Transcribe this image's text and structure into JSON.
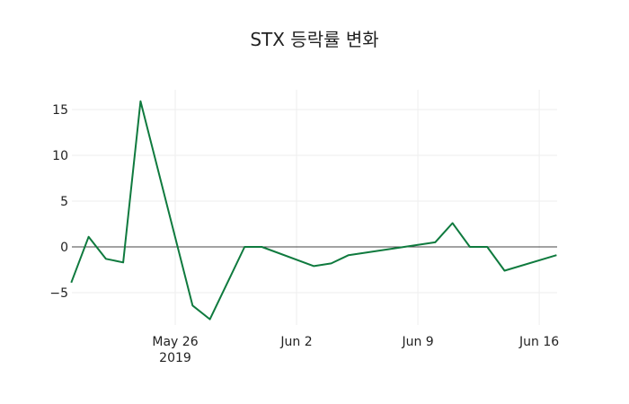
{
  "title": "STX 등락률 변화",
  "colors": {
    "line": "#0f7a3e",
    "zero_line": "#444444",
    "grid": "#eeeeee"
  },
  "chart_data": {
    "type": "line",
    "title": "STX 등락률 변화",
    "xlabel": "",
    "ylabel": "",
    "x": [
      "2019-05-20",
      "2019-05-21",
      "2019-05-22",
      "2019-05-23",
      "2019-05-24",
      "2019-05-27",
      "2019-05-28",
      "2019-05-30",
      "2019-05-31",
      "2019-06-03",
      "2019-06-04",
      "2019-06-05",
      "2019-06-10",
      "2019-06-11",
      "2019-06-12",
      "2019-06-13",
      "2019-06-14",
      "2019-06-17"
    ],
    "series": [
      {
        "name": "STX",
        "values": [
          -3.9,
          1.1,
          -1.3,
          -1.7,
          15.9,
          -6.4,
          -7.9,
          0.0,
          0.0,
          -2.1,
          -1.8,
          -0.9,
          0.5,
          2.6,
          0.0,
          0.0,
          -2.6,
          -0.9
        ]
      }
    ],
    "y_ticks": [
      "15",
      "10",
      "5",
      "0",
      "−5"
    ],
    "x_ticks": [
      {
        "label": "May 26",
        "sub": "2019"
      },
      {
        "label": "Jun 2",
        "sub": ""
      },
      {
        "label": "Jun 9",
        "sub": ""
      },
      {
        "label": "Jun 16",
        "sub": ""
      }
    ],
    "ylim": [
      -8.5,
      17
    ],
    "grid": true,
    "legend": "none"
  }
}
